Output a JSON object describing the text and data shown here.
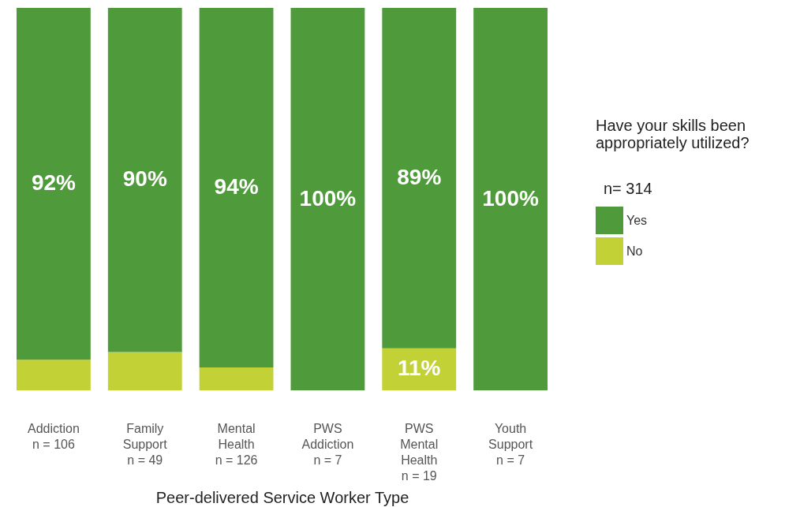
{
  "chart_data": {
    "type": "bar",
    "stacked": true,
    "xlabel": "Peer-delivered Service Worker Type",
    "legend_title": "Have your skills been appropriately utilized?",
    "legend": "right",
    "tick_labels": "x",
    "ylim": [
      0,
      100
    ],
    "grid": false,
    "categories": [
      "Addiction\nn = 106",
      "Family\nSupport\nn = 49",
      "Mental\nHealth\nn = 126",
      "PWS\nAddiction\nn = 7",
      "PWS\nMental\nHealth\nn = 19",
      "Youth\nSupport\nn = 7"
    ],
    "series": [
      {
        "name": "No",
        "color": "#c2d135",
        "values": [
          8,
          10,
          6,
          0,
          11,
          0
        ],
        "value_labels": [
          null,
          null,
          null,
          null,
          "11%",
          null
        ]
      },
      {
        "name": "Yes",
        "color": "#4f9a3b",
        "values": [
          92,
          90,
          94,
          100,
          89,
          100
        ],
        "value_labels": [
          "92%",
          "90%",
          "94%",
          "100%",
          "89%",
          "100%"
        ]
      }
    ],
    "annotations": [
      "n= 314"
    ]
  }
}
